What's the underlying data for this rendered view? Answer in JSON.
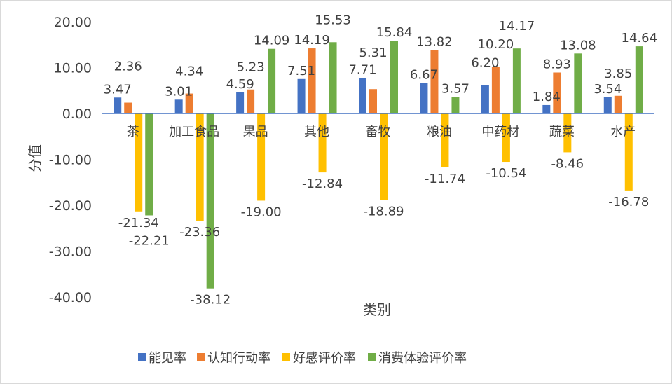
{
  "chart_data": {
    "type": "bar",
    "title": "",
    "xlabel": "类别",
    "ylabel": "分值",
    "ylim": [
      -40,
      20
    ],
    "yticks": [
      20,
      10,
      0,
      -10,
      -20,
      -30,
      -40
    ],
    "ytick_labels": [
      "20.00",
      "10.00",
      "0.00",
      "-10.00",
      "-20.00",
      "-30.00",
      "-40.00"
    ],
    "grid": false,
    "legend_position": "bottom",
    "categories": [
      "茶",
      "加工食品",
      "果品",
      "其他",
      "畜牧",
      "粮油",
      "中药材",
      "蔬菜",
      "水产"
    ],
    "series": [
      {
        "name": "能见率",
        "color": "#4472C4",
        "values": [
          3.47,
          3.01,
          4.59,
          7.51,
          7.71,
          6.67,
          6.2,
          1.84,
          3.54
        ]
      },
      {
        "name": "认知行动率",
        "color": "#ED7D31",
        "values": [
          2.36,
          4.34,
          5.23,
          14.19,
          5.31,
          13.82,
          10.2,
          8.93,
          3.85
        ]
      },
      {
        "name": "好感评价率",
        "color": "#FFC000",
        "values": [
          -21.34,
          -23.36,
          -19.0,
          -12.84,
          -18.89,
          -11.74,
          -10.54,
          -8.46,
          -16.78
        ]
      },
      {
        "name": "消费体验评价率",
        "color": "#70AD47",
        "values": [
          -22.21,
          -38.12,
          14.09,
          15.53,
          15.84,
          3.57,
          14.17,
          13.08,
          14.64
        ]
      }
    ]
  }
}
